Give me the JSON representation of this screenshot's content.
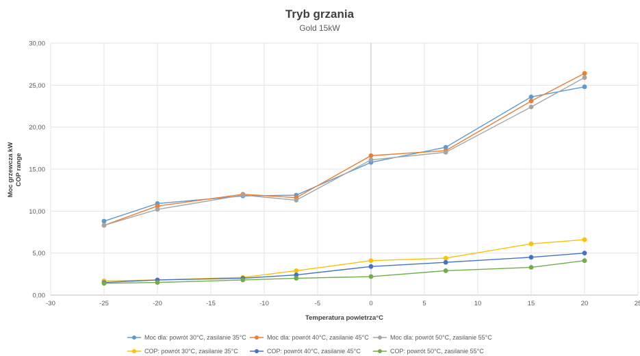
{
  "chart_data": {
    "type": "line",
    "title": "Tryb grzania",
    "subtitle": "Gold 15kW",
    "xlabel": "Temperatura powietrza°C",
    "ylabel": "Moc grzewcza kW",
    "ylabel2": "COP range",
    "xlim": [
      -30,
      25
    ],
    "ylim": [
      0,
      30
    ],
    "x_ticks": [
      -30,
      -25,
      -20,
      -15,
      -10,
      -5,
      0,
      5,
      10,
      15,
      20,
      25
    ],
    "y_ticks": [
      0,
      5,
      10,
      15,
      20,
      25,
      30
    ],
    "y_tick_labels": [
      "0,00",
      "5,00",
      "10,00",
      "15,00",
      "20,00",
      "25,00",
      "30,00"
    ],
    "grid": true,
    "legend_position": "bottom",
    "x": [
      -25,
      -20,
      -12,
      -7,
      0,
      7,
      15,
      20
    ],
    "series": [
      {
        "name": "Moc dla: powrót 30°C, zasilanie 35°C",
        "color": "#5B9BD5",
        "values": [
          8.8,
          10.9,
          11.8,
          11.9,
          15.8,
          17.6,
          23.6,
          24.8
        ]
      },
      {
        "name": "Moc dla: powrót 40°C, zasilanie 45°C",
        "color": "#ED7D31",
        "values": [
          8.3,
          10.6,
          12.0,
          11.6,
          16.6,
          17.2,
          23.1,
          26.4
        ]
      },
      {
        "name": "Moc dla: powrót 50°C, zasilanie 55°C",
        "color": "#A5A5A5",
        "values": [
          8.3,
          10.2,
          11.9,
          11.3,
          16.1,
          17.0,
          22.4,
          25.9
        ]
      },
      {
        "name": "COP: powrót 30°C, zasilanie 35°C",
        "color": "#FFC000",
        "values": [
          1.7,
          1.8,
          2.1,
          2.9,
          4.1,
          4.4,
          6.1,
          6.6
        ]
      },
      {
        "name": "COP: powrót 40°C, zasilanie 45°C",
        "color": "#4472C4",
        "values": [
          1.5,
          1.8,
          2.0,
          2.4,
          3.4,
          3.9,
          4.5,
          5.0
        ]
      },
      {
        "name": "COP: powrót 50°C, zasilanie 55°C",
        "color": "#70AD47",
        "values": [
          1.4,
          1.5,
          1.8,
          2.0,
          2.2,
          2.9,
          3.3,
          4.1
        ]
      }
    ]
  }
}
